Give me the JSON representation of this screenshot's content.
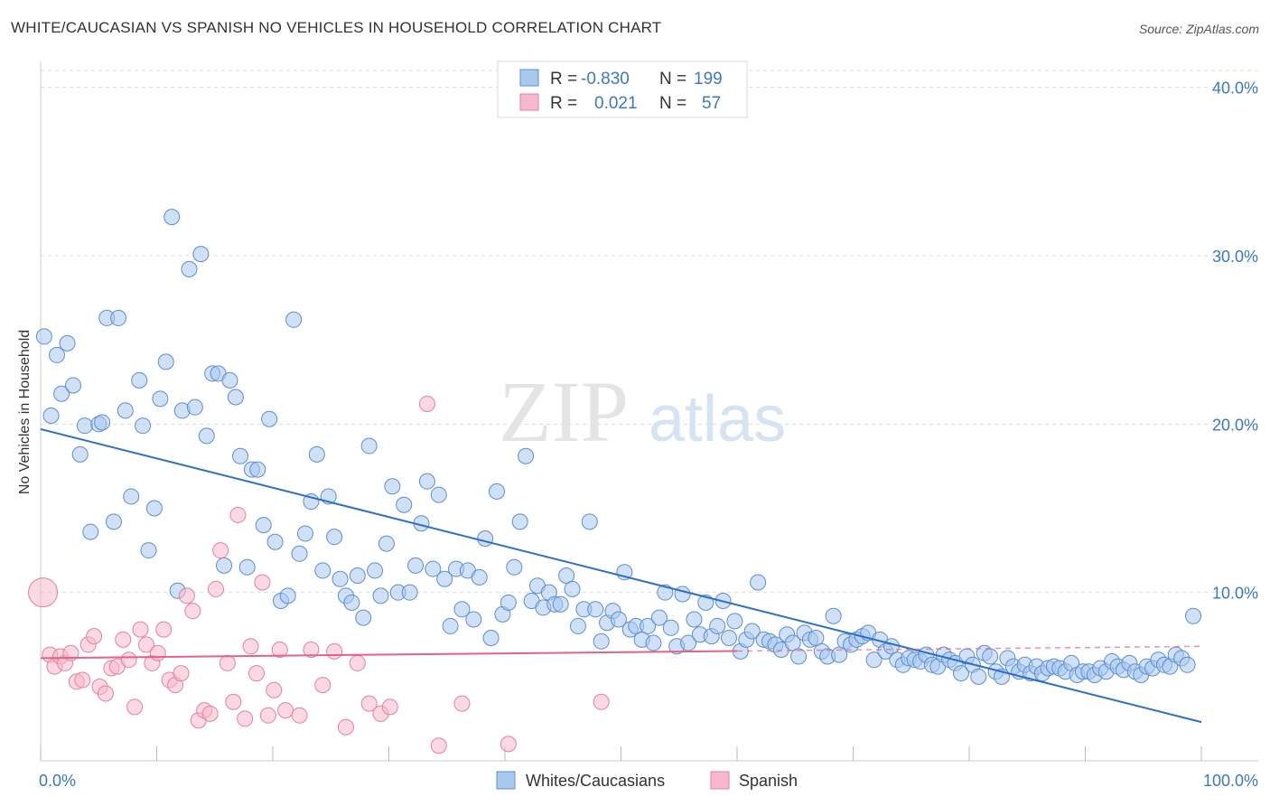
{
  "title": "WHITE/CAUCASIAN VS SPANISH NO VEHICLES IN HOUSEHOLD CORRELATION CHART",
  "source": "Source: ZipAtlas.com",
  "watermark": {
    "zip": "ZIP",
    "atlas": "atlas"
  },
  "legend_top": [
    {
      "r_label": "R =",
      "r_value": "-0.830",
      "n_label": "N =",
      "n_value": "199"
    },
    {
      "r_label": "R =",
      "r_value": "0.021",
      "n_label": "N =",
      "n_value": "57"
    }
  ],
  "colors": {
    "blue_fill": "#a9c8ee",
    "blue_stroke": "#5b8fd1",
    "blue_line": "#2a6fce",
    "pink_fill": "#f6b9cb",
    "pink_stroke": "#e8809f",
    "pink_line": "#e4628a",
    "tick_text": "#3a78c9",
    "grid": "#dddddd"
  },
  "chart_data": {
    "type": "scatter",
    "title": "WHITE/CAUCASIAN VS SPANISH NO VEHICLES IN HOUSEHOLD CORRELATION CHART",
    "xlabel": "",
    "ylabel": "No Vehicles in Household",
    "xlim": [
      0,
      100
    ],
    "ylim": [
      0,
      41
    ],
    "x_tick_labels": [
      "0.0%",
      "100.0%"
    ],
    "y_ticks": [
      10,
      20,
      30,
      40
    ],
    "y_tick_labels": [
      "10.0%",
      "20.0%",
      "30.0%",
      "40.0%"
    ],
    "grid": "horizontal dashed",
    "legend_position": "bottom-center",
    "series": [
      {
        "name": "Whites/Caucasians",
        "color": "#a9c8ee",
        "trend": {
          "x": [
            0,
            100
          ],
          "y": [
            19.7,
            2.3
          ]
        },
        "points": [
          [
            0.3,
            25.2
          ],
          [
            0.9,
            20.5
          ],
          [
            1.4,
            24.1
          ],
          [
            1.8,
            21.8
          ],
          [
            2.3,
            24.8
          ],
          [
            2.8,
            22.3
          ],
          [
            3.4,
            18.2
          ],
          [
            3.8,
            19.9
          ],
          [
            4.3,
            13.6
          ],
          [
            5.0,
            20.0
          ],
          [
            5.3,
            20.1
          ],
          [
            5.7,
            26.3
          ],
          [
            6.3,
            14.2
          ],
          [
            6.7,
            26.3
          ],
          [
            7.3,
            20.8
          ],
          [
            7.8,
            15.7
          ],
          [
            8.5,
            22.6
          ],
          [
            8.8,
            19.9
          ],
          [
            9.3,
            12.5
          ],
          [
            9.8,
            15.0
          ],
          [
            10.3,
            21.5
          ],
          [
            10.8,
            23.7
          ],
          [
            11.3,
            32.3
          ],
          [
            11.8,
            10.1
          ],
          [
            12.2,
            20.8
          ],
          [
            12.8,
            29.2
          ],
          [
            13.3,
            21.0
          ],
          [
            13.8,
            30.1
          ],
          [
            14.3,
            19.3
          ],
          [
            14.8,
            23.0
          ],
          [
            15.3,
            23.0
          ],
          [
            15.8,
            11.6
          ],
          [
            16.3,
            22.6
          ],
          [
            16.8,
            21.6
          ],
          [
            17.2,
            18.1
          ],
          [
            17.8,
            11.5
          ],
          [
            18.2,
            17.3
          ],
          [
            18.7,
            17.3
          ],
          [
            19.2,
            14.0
          ],
          [
            19.7,
            20.3
          ],
          [
            20.2,
            13.0
          ],
          [
            20.7,
            9.5
          ],
          [
            21.3,
            9.8
          ],
          [
            21.8,
            26.2
          ],
          [
            22.3,
            12.3
          ],
          [
            22.8,
            13.5
          ],
          [
            23.3,
            15.4
          ],
          [
            23.8,
            18.2
          ],
          [
            24.3,
            11.3
          ],
          [
            24.8,
            15.7
          ],
          [
            25.3,
            13.3
          ],
          [
            25.8,
            10.8
          ],
          [
            26.3,
            9.8
          ],
          [
            26.8,
            9.4
          ],
          [
            27.3,
            11.0
          ],
          [
            27.8,
            8.5
          ],
          [
            28.3,
            18.7
          ],
          [
            28.8,
            11.3
          ],
          [
            29.3,
            9.8
          ],
          [
            29.8,
            12.9
          ],
          [
            30.3,
            16.3
          ],
          [
            30.8,
            10.0
          ],
          [
            31.3,
            15.2
          ],
          [
            31.8,
            10.0
          ],
          [
            32.3,
            11.6
          ],
          [
            32.8,
            14.1
          ],
          [
            33.3,
            16.6
          ],
          [
            33.8,
            11.4
          ],
          [
            34.3,
            15.8
          ],
          [
            34.8,
            10.8
          ],
          [
            35.3,
            8.0
          ],
          [
            35.8,
            11.4
          ],
          [
            36.3,
            9.0
          ],
          [
            36.8,
            11.3
          ],
          [
            37.3,
            8.4
          ],
          [
            37.8,
            10.9
          ],
          [
            38.3,
            13.2
          ],
          [
            38.8,
            7.3
          ],
          [
            39.3,
            16.0
          ],
          [
            39.8,
            8.7
          ],
          [
            40.3,
            9.4
          ],
          [
            40.8,
            11.5
          ],
          [
            41.3,
            14.2
          ],
          [
            41.8,
            18.1
          ],
          [
            42.3,
            9.5
          ],
          [
            42.8,
            10.4
          ],
          [
            43.3,
            9.1
          ],
          [
            43.8,
            10.0
          ],
          [
            44.3,
            9.3
          ],
          [
            44.8,
            9.3
          ],
          [
            45.3,
            11.0
          ],
          [
            45.8,
            10.2
          ],
          [
            46.3,
            8.0
          ],
          [
            46.8,
            9.0
          ],
          [
            47.3,
            14.2
          ],
          [
            47.8,
            9.0
          ],
          [
            48.3,
            7.1
          ],
          [
            48.8,
            8.2
          ],
          [
            49.3,
            8.9
          ],
          [
            49.8,
            8.4
          ],
          [
            50.3,
            11.2
          ],
          [
            50.8,
            7.8
          ],
          [
            51.3,
            8.0
          ],
          [
            51.8,
            7.2
          ],
          [
            52.3,
            8.0
          ],
          [
            52.8,
            7.0
          ],
          [
            53.3,
            8.5
          ],
          [
            53.8,
            10.0
          ],
          [
            54.3,
            7.9
          ],
          [
            54.8,
            6.8
          ],
          [
            55.3,
            9.9
          ],
          [
            55.8,
            7.0
          ],
          [
            56.3,
            8.4
          ],
          [
            56.8,
            7.5
          ],
          [
            57.3,
            9.4
          ],
          [
            57.8,
            7.4
          ],
          [
            58.3,
            8.0
          ],
          [
            58.8,
            9.5
          ],
          [
            59.3,
            7.3
          ],
          [
            59.8,
            8.3
          ],
          [
            60.3,
            6.5
          ],
          [
            60.8,
            7.2
          ],
          [
            61.3,
            7.7
          ],
          [
            61.8,
            10.6
          ],
          [
            62.3,
            7.2
          ],
          [
            62.8,
            7.1
          ],
          [
            63.3,
            6.9
          ],
          [
            63.8,
            6.6
          ],
          [
            64.3,
            7.5
          ],
          [
            64.8,
            7.0
          ],
          [
            65.3,
            6.2
          ],
          [
            65.8,
            7.6
          ],
          [
            66.3,
            7.2
          ],
          [
            66.8,
            7.3
          ],
          [
            67.3,
            6.5
          ],
          [
            67.8,
            6.2
          ],
          [
            68.3,
            8.6
          ],
          [
            68.8,
            6.3
          ],
          [
            69.3,
            7.1
          ],
          [
            69.8,
            6.9
          ],
          [
            70.3,
            7.2
          ],
          [
            70.8,
            7.4
          ],
          [
            71.3,
            7.6
          ],
          [
            71.8,
            6.0
          ],
          [
            72.3,
            7.2
          ],
          [
            72.8,
            6.5
          ],
          [
            73.3,
            6.8
          ],
          [
            73.8,
            6.0
          ],
          [
            74.3,
            5.7
          ],
          [
            74.8,
            6.1
          ],
          [
            75.3,
            6.0
          ],
          [
            75.8,
            5.9
          ],
          [
            76.3,
            6.3
          ],
          [
            76.8,
            5.7
          ],
          [
            77.3,
            5.6
          ],
          [
            77.8,
            6.3
          ],
          [
            78.3,
            6.0
          ],
          [
            78.8,
            5.8
          ],
          [
            79.3,
            5.2
          ],
          [
            79.8,
            6.2
          ],
          [
            80.3,
            5.7
          ],
          [
            80.8,
            5.0
          ],
          [
            81.3,
            6.4
          ],
          [
            81.8,
            6.2
          ],
          [
            82.3,
            5.3
          ],
          [
            82.8,
            5.0
          ],
          [
            83.3,
            6.1
          ],
          [
            83.8,
            5.6
          ],
          [
            84.3,
            5.3
          ],
          [
            84.8,
            5.7
          ],
          [
            85.3,
            5.2
          ],
          [
            85.8,
            5.6
          ],
          [
            86.3,
            5.2
          ],
          [
            86.8,
            5.5
          ],
          [
            87.3,
            5.6
          ],
          [
            87.8,
            5.5
          ],
          [
            88.3,
            5.3
          ],
          [
            88.8,
            5.8
          ],
          [
            89.3,
            5.1
          ],
          [
            89.8,
            5.3
          ],
          [
            90.3,
            5.3
          ],
          [
            90.8,
            5.1
          ],
          [
            91.3,
            5.5
          ],
          [
            91.8,
            5.3
          ],
          [
            92.3,
            5.9
          ],
          [
            92.8,
            5.6
          ],
          [
            93.3,
            5.4
          ],
          [
            93.8,
            5.8
          ],
          [
            94.3,
            5.3
          ],
          [
            94.8,
            5.1
          ],
          [
            95.3,
            5.6
          ],
          [
            95.8,
            5.5
          ],
          [
            96.3,
            6.0
          ],
          [
            96.8,
            5.7
          ],
          [
            97.3,
            5.6
          ],
          [
            97.8,
            6.3
          ],
          [
            98.3,
            6.1
          ],
          [
            98.8,
            5.7
          ],
          [
            99.3,
            8.6
          ]
        ]
      },
      {
        "name": "Spanish",
        "color": "#f6b9cb",
        "trend": {
          "x": [
            0,
            100
          ],
          "y": [
            6.1,
            6.8
          ]
        },
        "points": [
          [
            0.2,
            10.0
          ],
          [
            0.8,
            6.3
          ],
          [
            1.2,
            5.6
          ],
          [
            1.7,
            6.2
          ],
          [
            2.1,
            5.8
          ],
          [
            2.6,
            6.4
          ],
          [
            3.1,
            4.7
          ],
          [
            3.6,
            4.8
          ],
          [
            4.1,
            6.9
          ],
          [
            4.6,
            7.4
          ],
          [
            5.1,
            4.4
          ],
          [
            5.6,
            4.0
          ],
          [
            6.1,
            5.5
          ],
          [
            6.6,
            5.6
          ],
          [
            7.1,
            7.2
          ],
          [
            7.6,
            6.0
          ],
          [
            8.1,
            3.2
          ],
          [
            8.6,
            7.8
          ],
          [
            9.1,
            6.9
          ],
          [
            9.6,
            5.8
          ],
          [
            10.1,
            6.4
          ],
          [
            10.6,
            7.8
          ],
          [
            11.1,
            4.8
          ],
          [
            11.6,
            4.5
          ],
          [
            12.1,
            5.2
          ],
          [
            12.6,
            9.8
          ],
          [
            13.1,
            8.9
          ],
          [
            13.6,
            2.4
          ],
          [
            14.1,
            3.0
          ],
          [
            14.6,
            2.8
          ],
          [
            15.1,
            10.2
          ],
          [
            15.5,
            12.5
          ],
          [
            16.1,
            5.8
          ],
          [
            16.6,
            3.5
          ],
          [
            17.0,
            14.6
          ],
          [
            17.6,
            2.5
          ],
          [
            18.1,
            6.8
          ],
          [
            18.6,
            5.2
          ],
          [
            19.1,
            10.6
          ],
          [
            19.6,
            2.7
          ],
          [
            20.1,
            4.2
          ],
          [
            20.6,
            6.6
          ],
          [
            21.1,
            3.0
          ],
          [
            22.3,
            2.7
          ],
          [
            23.3,
            6.6
          ],
          [
            24.3,
            4.5
          ],
          [
            25.3,
            6.5
          ],
          [
            26.3,
            2.0
          ],
          [
            27.3,
            5.8
          ],
          [
            28.3,
            3.4
          ],
          [
            29.3,
            2.8
          ],
          [
            30.1,
            3.2
          ],
          [
            33.3,
            21.2
          ],
          [
            34.3,
            0.9
          ],
          [
            36.3,
            3.4
          ],
          [
            40.3,
            1.0
          ],
          [
            48.3,
            3.5
          ]
        ]
      }
    ]
  },
  "legend_bottom": [
    {
      "label": "Whites/Caucasians"
    },
    {
      "label": "Spanish"
    }
  ]
}
